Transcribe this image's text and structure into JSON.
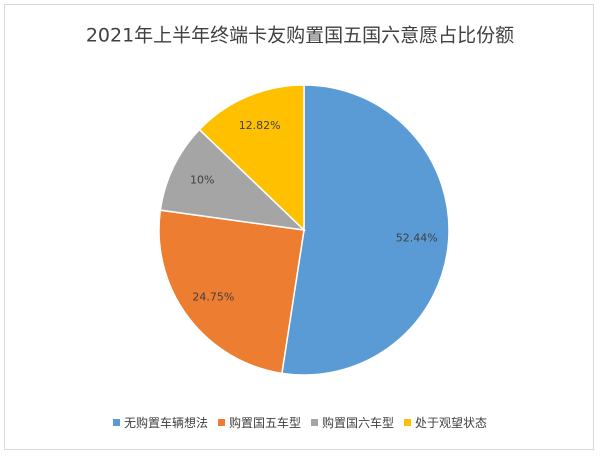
{
  "chart_data": {
    "type": "pie",
    "title": "2021年上半年终端卡友购置国五国六意愿占比份额",
    "categories": [
      "无购置车辆想法",
      "购置国五车型",
      "购置国六车型",
      "处于观望状态"
    ],
    "values": [
      52.44,
      24.75,
      10,
      12.82
    ],
    "value_labels": [
      "52.44%",
      "24.75%",
      "10%",
      "12.82%"
    ],
    "colors": [
      "#5b9bd5",
      "#ed7d31",
      "#a5a5a5",
      "#ffc000"
    ]
  }
}
